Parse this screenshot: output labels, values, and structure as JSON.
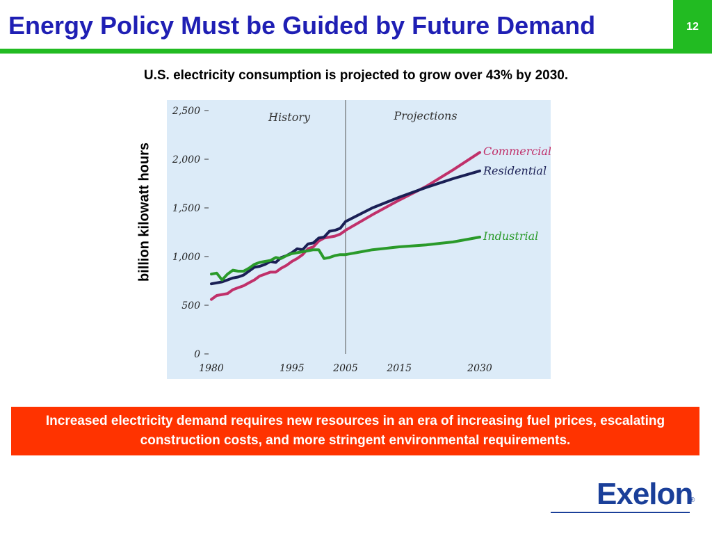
{
  "slide": {
    "title": "Energy Policy Must be Guided by Future Demand",
    "page_number": "12",
    "subtitle": "U.S. electricity consumption is projected to grow over 43% by 2030.",
    "callout": "Increased electricity demand requires new resources in an era of increasing fuel prices, escalating construction costs, and more stringent environmental requirements.",
    "logo_text": "Exelon",
    "logo_reg": "®"
  },
  "colors": {
    "title": "#1f1fb4",
    "accent_green": "#22bb22",
    "callout_bg": "#ff3300",
    "chart_bg": "#dcebf8",
    "commercial": "#c0306a",
    "residential": "#1a1f55",
    "industrial": "#2a9a2a",
    "logo": "#1a3f99"
  },
  "chart_data": {
    "type": "line",
    "ylabel": "billion kilowatt hours",
    "xlabel": "",
    "ylim": [
      0,
      2500
    ],
    "xlim": [
      1980,
      2030
    ],
    "y_ticks": [
      0,
      500,
      1000,
      1500,
      2000,
      2500
    ],
    "y_tick_labels": [
      "0",
      "500",
      "1,000",
      "1,500",
      "2,000",
      "2,500"
    ],
    "x_ticks": [
      1980,
      1995,
      2005,
      2015,
      2030
    ],
    "x_tick_labels": [
      "1980",
      "1995",
      "2005",
      "2015",
      "2030"
    ],
    "divider_year": 2005,
    "region_labels": [
      "History",
      "Projections"
    ],
    "grid": false,
    "legend": "inline-right",
    "series": [
      {
        "name": "Commercial",
        "color": "#c0306a",
        "x": [
          1980,
          1981,
          1982,
          1983,
          1984,
          1985,
          1986,
          1987,
          1988,
          1989,
          1990,
          1991,
          1992,
          1993,
          1994,
          1995,
          1996,
          1997,
          1998,
          1999,
          2000,
          2001,
          2002,
          2003,
          2004,
          2005,
          2010,
          2015,
          2020,
          2025,
          2030
        ],
        "y": [
          560,
          600,
          610,
          620,
          660,
          680,
          700,
          730,
          760,
          800,
          820,
          840,
          840,
          880,
          910,
          950,
          980,
          1020,
          1080,
          1100,
          1160,
          1190,
          1200,
          1210,
          1230,
          1270,
          1430,
          1580,
          1720,
          1890,
          2070
        ]
      },
      {
        "name": "Residential",
        "color": "#1a1f55",
        "x": [
          1980,
          1981,
          1982,
          1983,
          1984,
          1985,
          1986,
          1987,
          1988,
          1989,
          1990,
          1991,
          1992,
          1993,
          1994,
          1995,
          1996,
          1997,
          1998,
          1999,
          2000,
          2001,
          2002,
          2003,
          2004,
          2005,
          2010,
          2015,
          2020,
          2025,
          2030
        ],
        "y": [
          720,
          730,
          740,
          760,
          780,
          790,
          810,
          850,
          890,
          900,
          920,
          950,
          940,
          990,
          1010,
          1040,
          1080,
          1070,
          1130,
          1140,
          1190,
          1200,
          1260,
          1270,
          1290,
          1360,
          1500,
          1610,
          1710,
          1800,
          1880
        ]
      },
      {
        "name": "Industrial",
        "color": "#2a9a2a",
        "x": [
          1980,
          1981,
          1982,
          1983,
          1984,
          1985,
          1986,
          1987,
          1988,
          1989,
          1990,
          1991,
          1992,
          1993,
          1994,
          1995,
          1996,
          1997,
          1998,
          1999,
          2000,
          2001,
          2002,
          2003,
          2004,
          2005,
          2010,
          2015,
          2020,
          2025,
          2030
        ],
        "y": [
          820,
          830,
          760,
          820,
          860,
          850,
          850,
          880,
          920,
          940,
          950,
          960,
          990,
          980,
          1010,
          1030,
          1040,
          1050,
          1060,
          1070,
          1070,
          980,
          990,
          1010,
          1020,
          1020,
          1070,
          1100,
          1120,
          1150,
          1200
        ]
      }
    ]
  }
}
